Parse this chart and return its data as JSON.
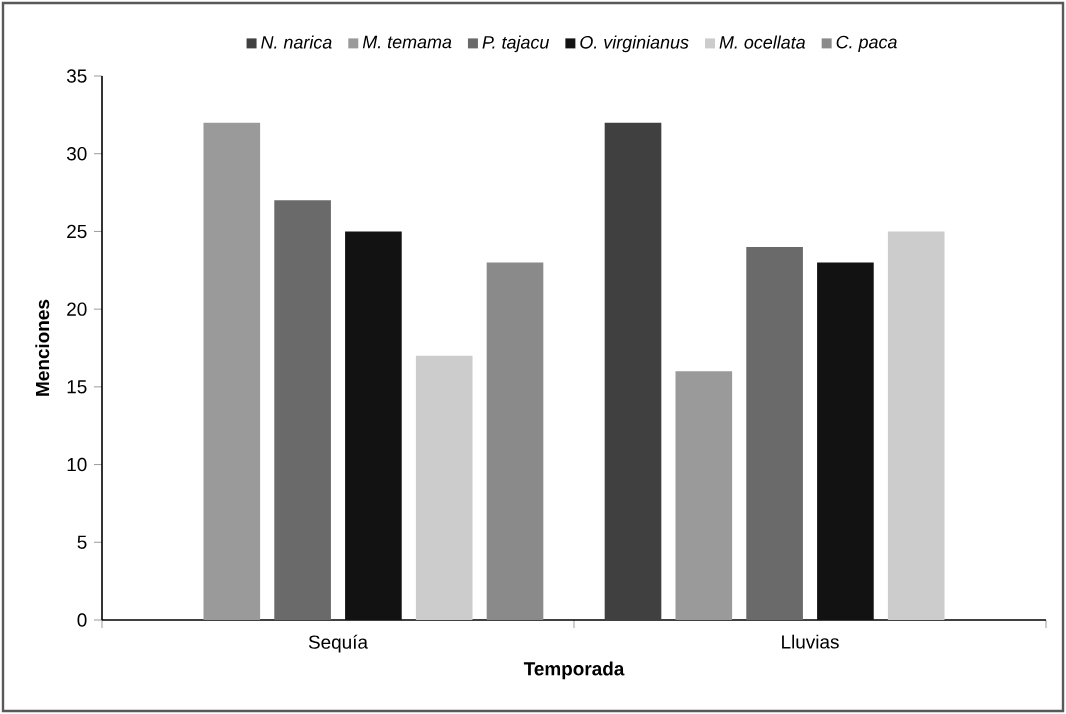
{
  "chart_data": {
    "type": "bar",
    "xlabel": "Temporada",
    "ylabel": "Menciones",
    "categories": [
      "Sequía",
      "Lluvias"
    ],
    "series": [
      {
        "name": "N. narica",
        "color": "#404040",
        "values": [
          null,
          32
        ]
      },
      {
        "name": "M. temama",
        "color": "#9a9a9a",
        "values": [
          32,
          16
        ]
      },
      {
        "name": "P. tajacu",
        "color": "#6a6a6a",
        "values": [
          27,
          24
        ]
      },
      {
        "name": "O. virginianus",
        "color": "#121212",
        "values": [
          25,
          23
        ]
      },
      {
        "name": "M. ocellata",
        "color": "#cccccc",
        "values": [
          17,
          25
        ]
      },
      {
        "name": "C. paca",
        "color": "#8a8a8a",
        "values": [
          23,
          null
        ]
      }
    ],
    "ylim": [
      0,
      35
    ],
    "yticks": [
      0,
      5,
      10,
      15,
      20,
      25,
      30,
      35
    ],
    "grid": false,
    "legend": "top"
  }
}
